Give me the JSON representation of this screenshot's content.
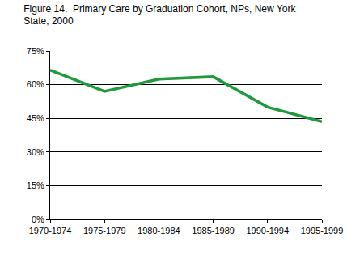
{
  "chart_data": {
    "type": "line",
    "title": "Figure 14.  Primary Care by Graduation Cohort, NPs, New York State, 2000",
    "categories": [
      "1970-1974",
      "1975-1979",
      "1980-1984",
      "1985-1989",
      "1990-1994",
      "1995-1999"
    ],
    "values": [
      66.5,
      57,
      62.5,
      63.5,
      50,
      43.5
    ],
    "color": "#1e9a3c",
    "ylim": [
      0,
      75
    ],
    "yticks": [
      {
        "value": 0,
        "label": "0%"
      },
      {
        "value": 15,
        "label": "15%"
      },
      {
        "value": 30,
        "label": "30%"
      },
      {
        "value": 45,
        "label": "45%"
      },
      {
        "value": 60,
        "label": "60%"
      },
      {
        "value": 75,
        "label": "75%"
      }
    ],
    "grid": true
  }
}
